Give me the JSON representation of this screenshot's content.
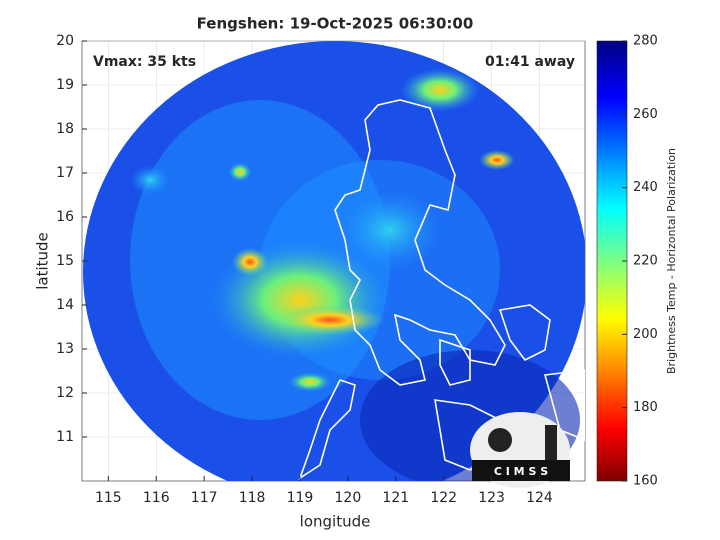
{
  "chart_data": {
    "type": "map",
    "title": "Fengshen: 19-Oct-2025 06:30:00",
    "annotations": [
      "Vmax: 35 kts",
      "01:41 away"
    ],
    "xlabel": "longitude",
    "ylabel": "latitude",
    "xlim": [
      114.45,
      124.95
    ],
    "ylim": [
      10,
      20
    ],
    "xticks": [
      115,
      116,
      117,
      118,
      119,
      120,
      121,
      122,
      123,
      124
    ],
    "yticks": [
      11,
      12,
      13,
      14,
      15,
      16,
      17,
      18,
      19,
      20
    ],
    "grid": true,
    "colorbar": {
      "label": "Brightness Temp - Horizontal Polarization",
      "lim": [
        160,
        280
      ],
      "ticks": [
        160,
        180,
        200,
        220,
        240,
        260,
        280
      ]
    },
    "logo": "C I M S S"
  }
}
